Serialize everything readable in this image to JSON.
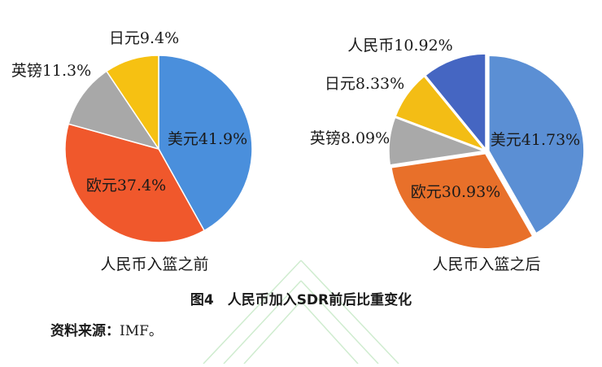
{
  "chart_data": [
    {
      "type": "pie",
      "title": "人民币入篮之前",
      "categories": [
        "美元",
        "欧元",
        "英镑",
        "日元"
      ],
      "values": [
        41.9,
        37.4,
        11.3,
        9.4
      ],
      "value_labels": [
        "41.9%",
        "37.4%",
        "11.3%",
        "9.4%"
      ],
      "colors": [
        "#4a8fdc",
        "#f0582c",
        "#a8a8a8",
        "#f6c112"
      ]
    },
    {
      "type": "pie",
      "title": "人民币入篮之后",
      "categories": [
        "美元",
        "欧元",
        "英镑",
        "日元",
        "人民币"
      ],
      "values": [
        41.73,
        30.93,
        8.09,
        8.33,
        10.92
      ],
      "value_labels": [
        "41.73%",
        "30.93%",
        "8.09%",
        "8.33%",
        "10.92%"
      ],
      "colors": [
        "#5b8fd4",
        "#e8702a",
        "#a9a9a9",
        "#f3bd15",
        "#4566c2"
      ]
    }
  ],
  "figure_caption": "图4　人民币加入SDR前后比重变化",
  "source_label": "资料来源：",
  "source": "IMF。"
}
